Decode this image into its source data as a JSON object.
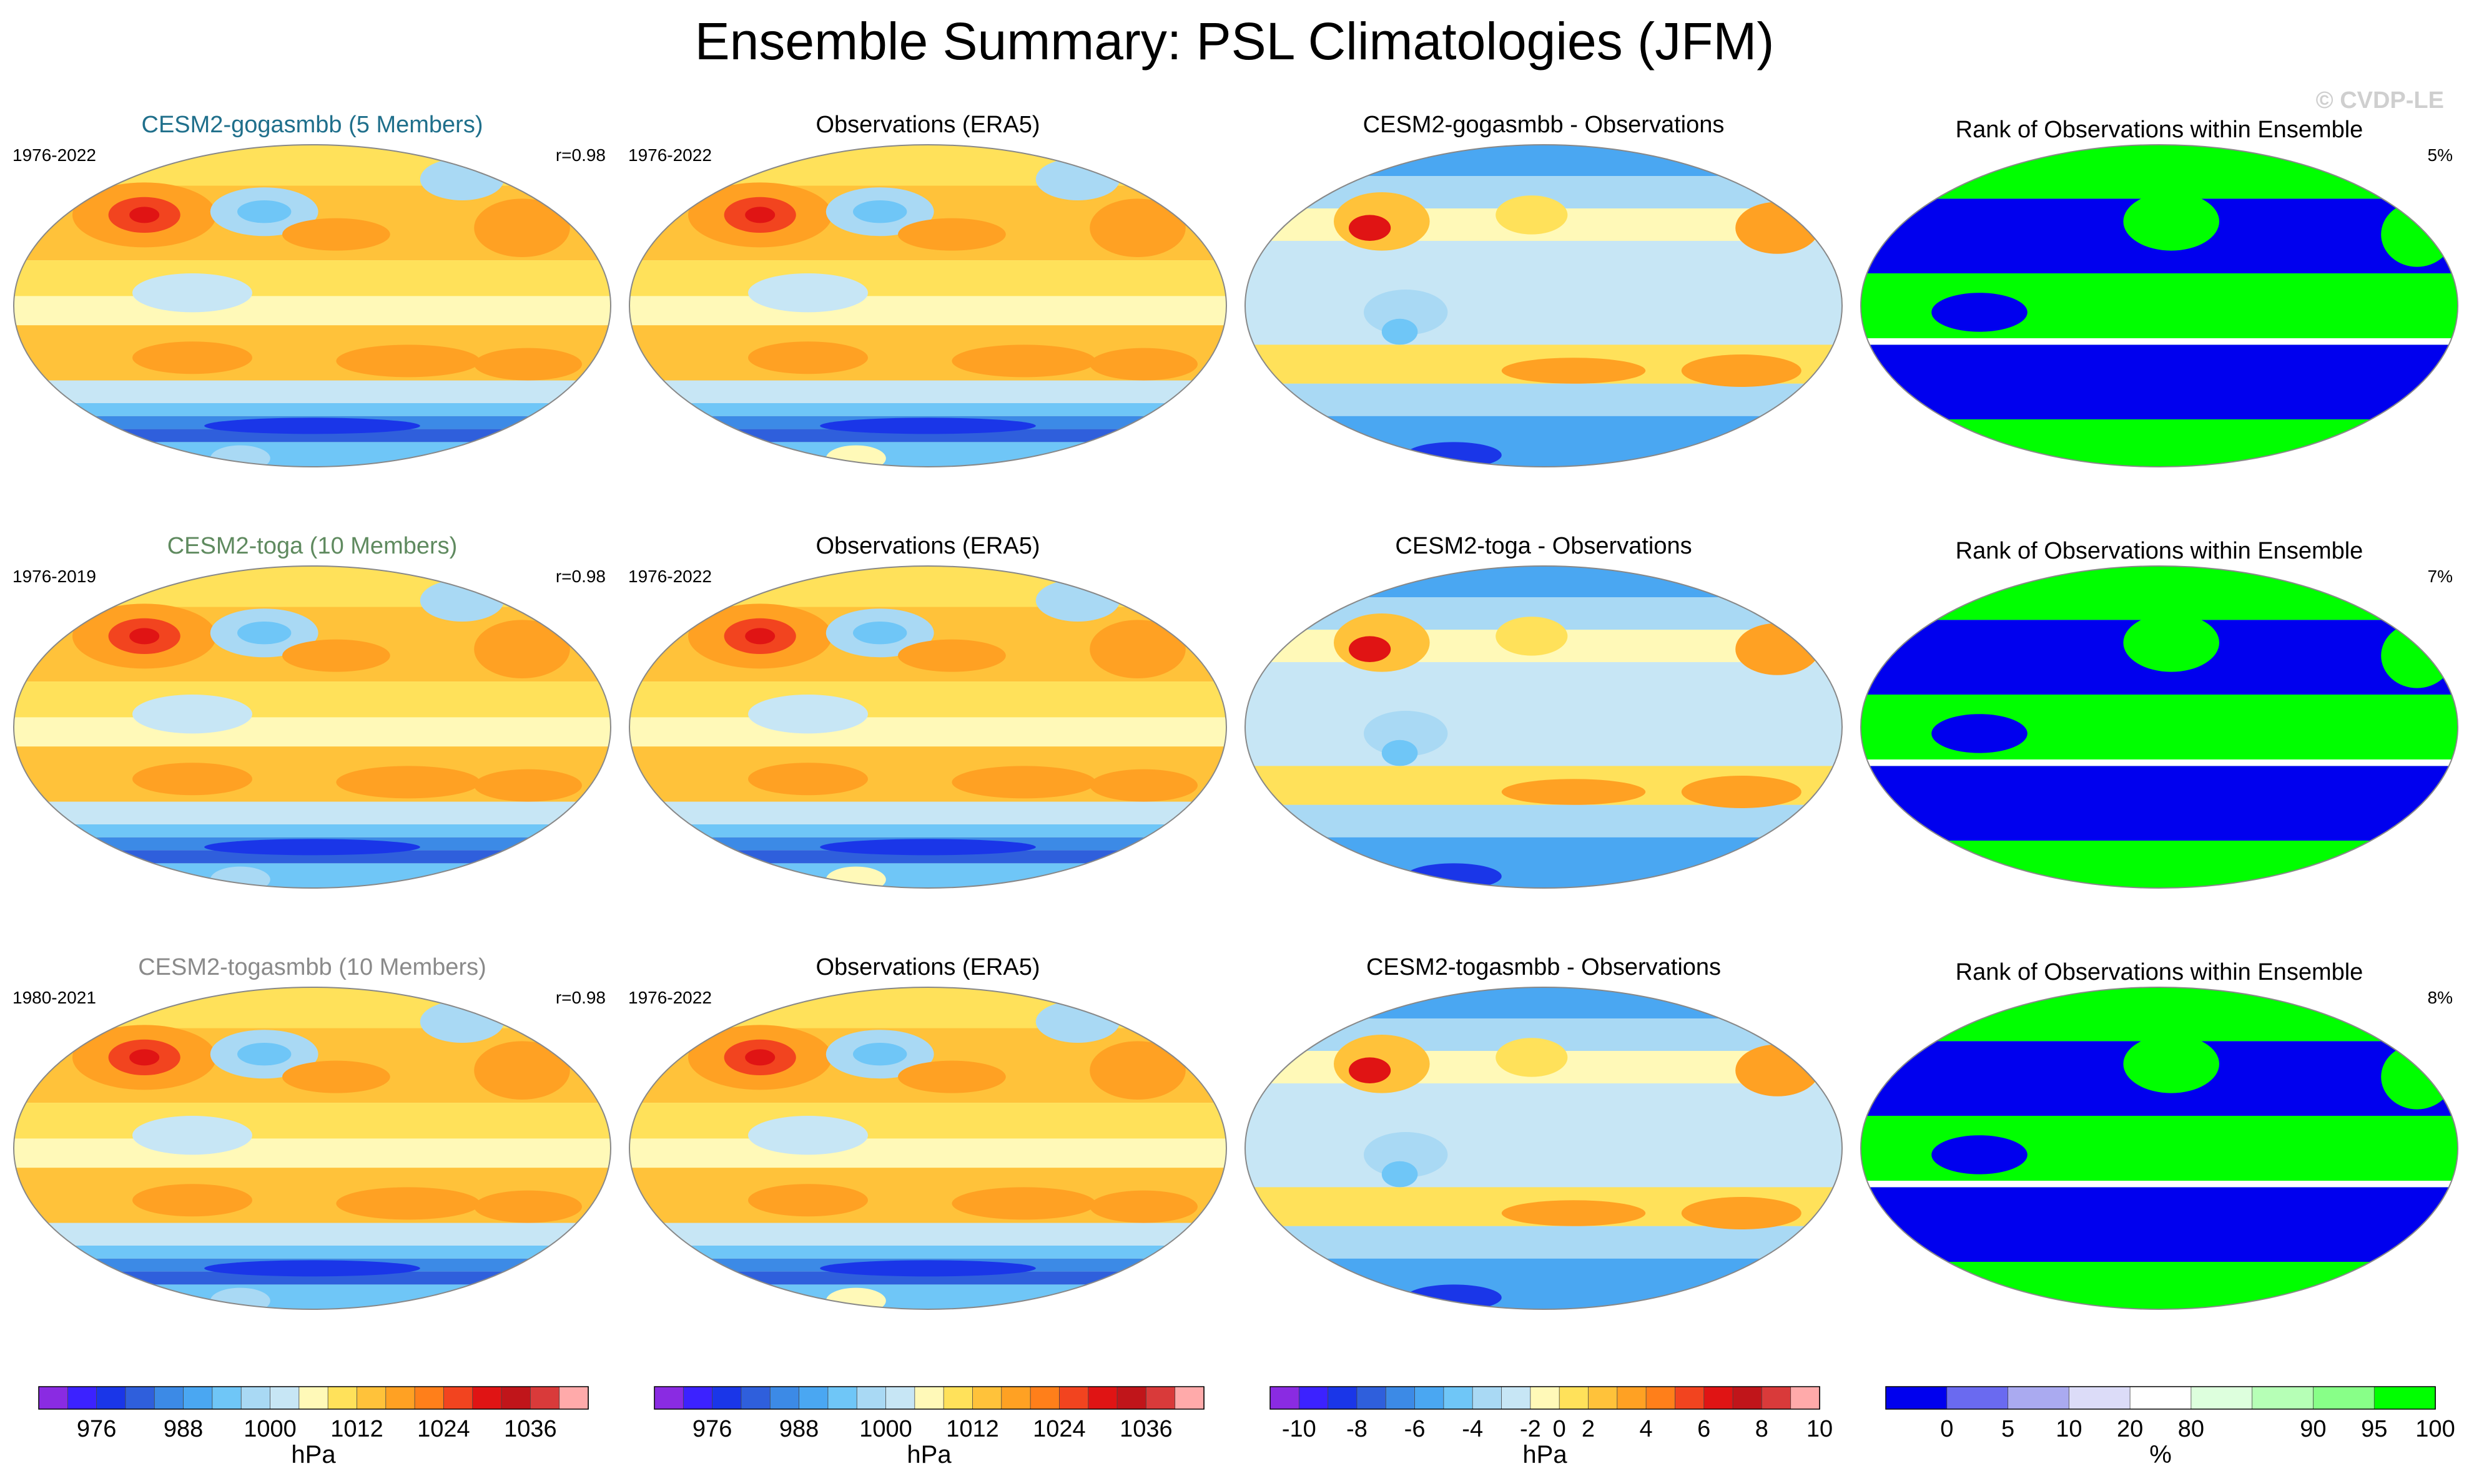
{
  "title": "Ensemble Summary: PSL Climatologies (JFM)",
  "watermark": "© CVDP-LE",
  "palettes": {
    "psl": [
      "#8a2be2",
      "#3c22ff",
      "#1a36e8",
      "#2f5fdc",
      "#3c8ae6",
      "#4aa7f2",
      "#6fc6f7",
      "#a9d9f4",
      "#c7e6f5",
      "#fff9b8",
      "#ffe15a",
      "#ffc23a",
      "#ffa123",
      "#ff7f1a",
      "#f2441f",
      "#e01414",
      "#c0151a",
      "#d93a3a",
      "#ffaaaa"
    ],
    "diff": [
      "#8a2be2",
      "#3c22ff",
      "#1a36e8",
      "#2f5fdc",
      "#3c8ae6",
      "#4aa7f2",
      "#6fc6f7",
      "#a9d9f4",
      "#c7e6f5",
      "#fff9b8",
      "#ffe15a",
      "#ffc23a",
      "#ffa123",
      "#ff7f1a",
      "#f2441f",
      "#e01414",
      "#c0151a",
      "#d93a3a",
      "#ffaaaa"
    ],
    "rank": [
      "#0000ee",
      "#6a6af0",
      "#aaaaf0",
      "#dcdcf8",
      "#ffffff",
      "#ddffdd",
      "#b6ffb6",
      "#88ff88",
      "#00ff00"
    ]
  },
  "rows": [
    {
      "model": {
        "title": "CESM2-gogasmbb (5 Members)",
        "title_color": "#1f6f8b",
        "years": "1976-2022",
        "stat": "r=0.98"
      },
      "obs": {
        "title": "Observations (ERA5)",
        "years": "1976-2022"
      },
      "diff": {
        "title": "CESM2-gogasmbb - Observations"
      },
      "rank": {
        "title": "Rank of Observations within Ensemble",
        "stat": "5%"
      }
    },
    {
      "model": {
        "title": "CESM2-toga (10 Members)",
        "title_color": "#5f8a5f",
        "years": "1976-2019",
        "stat": "r=0.98"
      },
      "obs": {
        "title": "Observations (ERA5)",
        "years": "1976-2022"
      },
      "diff": {
        "title": "CESM2-toga - Observations"
      },
      "rank": {
        "title": "Rank of Observations within Ensemble",
        "stat": "7%"
      }
    },
    {
      "model": {
        "title": "CESM2-togasmbb (10 Members)",
        "title_color": "#8a8a8a",
        "years": "1980-2021",
        "stat": "r=0.98"
      },
      "obs": {
        "title": "Observations (ERA5)",
        "years": "1976-2022"
      },
      "diff": {
        "title": "CESM2-togasmbb - Observations"
      },
      "rank": {
        "title": "Rank of Observations within Ensemble",
        "stat": "8%"
      }
    }
  ],
  "colorbars": [
    {
      "palette": "psl",
      "labels": [
        "976",
        "988",
        "1000",
        "1012",
        "1024",
        "1036"
      ],
      "label_slots": [
        2,
        5,
        8,
        11,
        14,
        17
      ],
      "unit": "hPa"
    },
    {
      "palette": "psl",
      "labels": [
        "976",
        "988",
        "1000",
        "1012",
        "1024",
        "1036"
      ],
      "label_slots": [
        2,
        5,
        8,
        11,
        14,
        17
      ],
      "unit": "hPa"
    },
    {
      "palette": "diff",
      "labels": [
        "-10",
        "-8",
        "-6",
        "-4",
        "-2",
        "0",
        "2",
        "4",
        "6",
        "8",
        "10"
      ],
      "label_slots": [
        1,
        3,
        5,
        7,
        9,
        10,
        11,
        13,
        15,
        17,
        19
      ],
      "unit": "hPa"
    },
    {
      "palette": "rank",
      "labels": [
        "0",
        "5",
        "10",
        "20",
        "80",
        "90",
        "95",
        "100"
      ],
      "label_slots": [
        1,
        2,
        3,
        4,
        5,
        7,
        8,
        9
      ],
      "unit": "%"
    }
  ],
  "chart_data": {
    "type": "heatmap",
    "title": "Ensemble Summary: PSL Climatologies (JFM)",
    "variable": "PSL",
    "season": "JFM",
    "psl_levels_hPa": [
      976,
      988,
      1000,
      1012,
      1024,
      1036
    ],
    "difference_levels_hPa": [
      -10,
      -8,
      -6,
      -4,
      -2,
      0,
      2,
      4,
      6,
      8,
      10
    ],
    "rank_levels_percent": [
      0,
      5,
      10,
      20,
      80,
      90,
      95,
      100
    ],
    "panels": [
      {
        "row": 1,
        "model": "CESM2-gogasmbb",
        "members": 5,
        "years": "1976-2022",
        "pattern_correlation": 0.98,
        "obs": "ERA5",
        "obs_years": "1976-2022",
        "rank_percent": 5
      },
      {
        "row": 2,
        "model": "CESM2-toga",
        "members": 10,
        "years": "1976-2019",
        "pattern_correlation": 0.98,
        "obs": "ERA5",
        "obs_years": "1976-2022",
        "rank_percent": 7
      },
      {
        "row": 3,
        "model": "CESM2-togasmbb",
        "members": 10,
        "years": "1980-2021",
        "pattern_correlation": 0.98,
        "obs": "ERA5",
        "obs_years": "1976-2022",
        "rank_percent": 8
      }
    ]
  }
}
